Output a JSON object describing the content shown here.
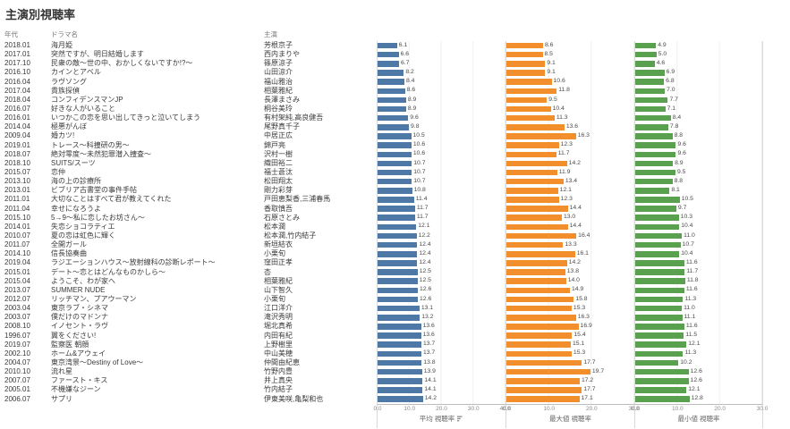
{
  "title": "主演別視聴率",
  "columns": {
    "year": "年代",
    "drama": "ドラマ名",
    "actor": "主演"
  },
  "colors": {
    "avg": "#4e79a7",
    "max": "#f28e2b",
    "min": "#59a14f"
  },
  "chart_data": {
    "type": "bar",
    "orientation": "horizontal",
    "legend": "none",
    "grid": "light-vertical",
    "panels": [
      {
        "name": "avg",
        "axis_label": "平均 視聴率",
        "ticks": [
          "0.0",
          "10.0",
          "20.0",
          "30.0",
          "40.0"
        ],
        "xlim": [
          0,
          40
        ],
        "has_sort_icon": true
      },
      {
        "name": "max",
        "axis_label": "最大値 視聴率",
        "ticks": [
          "0.0",
          "10.0",
          "20.0",
          "30.0"
        ],
        "xlim": [
          0,
          30
        ],
        "has_sort_icon": false
      },
      {
        "name": "min",
        "axis_label": "最小値 視聴率",
        "ticks": [
          "0.0",
          "10.0",
          "20.0",
          "30.0"
        ],
        "xlim": [
          0,
          30
        ],
        "has_sort_icon": false
      }
    ],
    "rows": [
      {
        "year": "2018.01",
        "drama": "海月姫",
        "actor": "芳根京子",
        "avg": 6.1,
        "max": 8.6,
        "min": 4.9
      },
      {
        "year": "2017.01",
        "drama": "突然ですが、明日結婚します",
        "actor": "西内まりや",
        "avg": 6.6,
        "max": 8.5,
        "min": 5.0
      },
      {
        "year": "2017.10",
        "drama": "民衆の敵〜世の中、おかしくないですか!?〜",
        "actor": "篠原涼子",
        "avg": 6.7,
        "max": 9.1,
        "min": 4.6
      },
      {
        "year": "2016.10",
        "drama": "カインとアベル",
        "actor": "山田涼介",
        "avg": 8.2,
        "max": 9.1,
        "min": 6.9
      },
      {
        "year": "2016.04",
        "drama": "ラヴソング",
        "actor": "福山雅治",
        "avg": 8.4,
        "max": 10.6,
        "min": 6.8
      },
      {
        "year": "2017.04",
        "drama": "貴族探偵",
        "actor": "相葉雅紀",
        "avg": 8.6,
        "max": 11.8,
        "min": 7.0
      },
      {
        "year": "2018.04",
        "drama": "コンフィデンスマンJP",
        "actor": "長澤まさみ",
        "avg": 8.9,
        "max": 9.5,
        "min": 7.7
      },
      {
        "year": "2016.07",
        "drama": "好きな人がいること",
        "actor": "桐谷美玲",
        "avg": 8.9,
        "max": 10.4,
        "min": 7.1
      },
      {
        "year": "2016.01",
        "drama": "いつかこの恋を思い出してきっと泣いてしまう",
        "actor": "有村架純,高良健吾",
        "avg": 9.6,
        "max": 11.3,
        "min": 8.4
      },
      {
        "year": "2014.04",
        "drama": "極悪がんぼ",
        "actor": "尾野真千子",
        "avg": 9.8,
        "max": 13.6,
        "min": 7.8
      },
      {
        "year": "2009.04",
        "drama": "婚カツ!",
        "actor": "中居正広",
        "avg": 10.5,
        "max": 16.3,
        "min": 8.8
      },
      {
        "year": "2019.01",
        "drama": "トレース〜科捜研の男〜",
        "actor": "錦戸亮",
        "avg": 10.6,
        "max": 12.3,
        "min": 9.6
      },
      {
        "year": "2018.07",
        "drama": "絶対零度〜未然犯罪潜入捜査〜",
        "actor": "沢村一樹",
        "avg": 10.6,
        "max": 11.7,
        "min": 9.6
      },
      {
        "year": "2018.10",
        "drama": "SUITS/スーツ",
        "actor": "織田裕二",
        "avg": 10.7,
        "max": 14.2,
        "min": 8.9
      },
      {
        "year": "2015.07",
        "drama": "恋仲",
        "actor": "福士蒼汰",
        "avg": 10.7,
        "max": 11.9,
        "min": 9.5
      },
      {
        "year": "2013.10",
        "drama": "海の上の診療所",
        "actor": "松田翔太",
        "avg": 10.7,
        "max": 13.4,
        "min": 8.8
      },
      {
        "year": "2013.01",
        "drama": "ビブリア古書堂の事件手帖",
        "actor": "剛力彩芽",
        "avg": 10.8,
        "max": 12.1,
        "min": 8.1
      },
      {
        "year": "2011.01",
        "drama": "大切なことはすべて君が教えてくれた",
        "actor": "戸田恵梨香,三浦春馬",
        "avg": 11.4,
        "max": 12.3,
        "min": 10.5
      },
      {
        "year": "2011.04",
        "drama": "幸せになろうよ",
        "actor": "香取慎吾",
        "avg": 11.7,
        "max": 14.4,
        "min": 9.7
      },
      {
        "year": "2015.10",
        "drama": "5→9〜私に恋したお坊さん〜",
        "actor": "石原さとみ",
        "avg": 11.7,
        "max": 13.0,
        "min": 10.3
      },
      {
        "year": "2014.01",
        "drama": "失恋ショコラティエ",
        "actor": "松本潤",
        "avg": 12.1,
        "max": 14.4,
        "min": 10.4
      },
      {
        "year": "2010.07",
        "drama": "夏の恋は虹色に輝く",
        "actor": "松本潤,竹内結子",
        "avg": 12.2,
        "max": 16.4,
        "min": 11.0
      },
      {
        "year": "2011.07",
        "drama": "全開ガール",
        "actor": "新垣結衣",
        "avg": 12.4,
        "max": 13.3,
        "min": 10.7
      },
      {
        "year": "2014.10",
        "drama": "信長協奏曲",
        "actor": "小栗旬",
        "avg": 12.4,
        "max": 16.1,
        "min": 10.4
      },
      {
        "year": "2019.04",
        "drama": "ラジエーションハウス〜放射線科の診断レポート〜",
        "actor": "窪田正孝",
        "avg": 12.4,
        "max": 14.2,
        "min": 11.6
      },
      {
        "year": "2015.01",
        "drama": "デート〜恋とはどんなものかしら〜",
        "actor": "杏",
        "avg": 12.5,
        "max": 13.8,
        "min": 11.7
      },
      {
        "year": "2015.04",
        "drama": "ようこそ、わが家へ",
        "actor": "相葉雅紀",
        "avg": 12.5,
        "max": 14.0,
        "min": 11.8
      },
      {
        "year": "2013.07",
        "drama": "SUMMER NUDE",
        "actor": "山下智久",
        "avg": 12.6,
        "max": 14.9,
        "min": 11.6
      },
      {
        "year": "2012.07",
        "drama": "リッチマン、プアウーマン",
        "actor": "小栗旬",
        "avg": 12.6,
        "max": 15.8,
        "min": 11.3
      },
      {
        "year": "2003.04",
        "drama": "東京ラブ・シネマ",
        "actor": "江口洋介",
        "avg": 13.1,
        "max": 15.3,
        "min": 11.0
      },
      {
        "year": "2003.07",
        "drama": "僕だけのマドンナ",
        "actor": "滝沢秀明",
        "avg": 13.2,
        "max": 16.3,
        "min": 11.1
      },
      {
        "year": "2008.10",
        "drama": "イノセント・ラヴ",
        "actor": "堀北真希",
        "avg": 13.6,
        "max": 16.9,
        "min": 11.6
      },
      {
        "year": "1996.07",
        "drama": "翼をください!",
        "actor": "内田有紀",
        "avg": 13.6,
        "max": 15.4,
        "min": 11.5
      },
      {
        "year": "2019.07",
        "drama": "監察医 朝顔",
        "actor": "上野樹里",
        "avg": 13.7,
        "max": 15.1,
        "min": 12.1
      },
      {
        "year": "2002.10",
        "drama": "ホーム&アウェイ",
        "actor": "中山美穂",
        "avg": 13.7,
        "max": 15.3,
        "min": 11.3
      },
      {
        "year": "2004.07",
        "drama": "東京湾景〜Destiny of Love〜",
        "actor": "仲間由紀恵",
        "avg": 13.8,
        "max": 17.7,
        "min": 10.2
      },
      {
        "year": "2010.10",
        "drama": "流れ星",
        "actor": "竹野内豊",
        "avg": 13.9,
        "max": 19.7,
        "min": 12.6
      },
      {
        "year": "2007.07",
        "drama": "ファースト・キス",
        "actor": "井上真央",
        "avg": 14.1,
        "max": 17.2,
        "min": 12.6
      },
      {
        "year": "2005.01",
        "drama": "不機嫌なジーン",
        "actor": "竹内結子",
        "avg": 14.1,
        "max": 17.7,
        "min": 12.1
      },
      {
        "year": "2006.07",
        "drama": "サプリ",
        "actor": "伊東美咲,亀梨和也",
        "avg": 14.2,
        "max": 17.1,
        "min": 12.8
      }
    ]
  }
}
